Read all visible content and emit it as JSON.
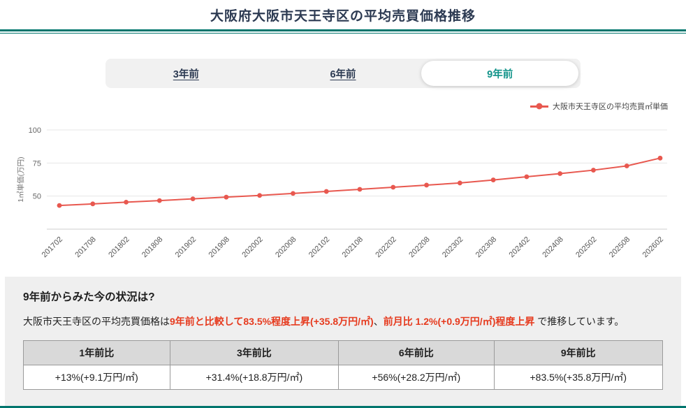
{
  "page": {
    "title": "大阪府大阪市天王寺区の平均売買価格推移"
  },
  "colors": {
    "accent_teal": "#00756d",
    "active_tab_teal": "#12948a",
    "line_red": "#e8584f",
    "text_red": "#e63a1e"
  },
  "tabs": [
    {
      "id": "3-years-ago",
      "label": "3年前",
      "active": false
    },
    {
      "id": "6-years-ago",
      "label": "6年前",
      "active": false
    },
    {
      "id": "9-years-ago",
      "label": "9年前",
      "active": true
    }
  ],
  "legend": {
    "label": "大阪市天王寺区の平均売買㎡単価",
    "color": "#e8584f"
  },
  "chart_data": {
    "type": "line",
    "x": [
      "201702",
      "201708",
      "201802",
      "201808",
      "201902",
      "201908",
      "202002",
      "202008",
      "202102",
      "202108",
      "202202",
      "202208",
      "202302",
      "202308",
      "202402",
      "202408",
      "202502",
      "202508",
      "202602"
    ],
    "series": [
      {
        "name": "大阪市天王寺区の平均売買㎡単価",
        "color": "#e8584f",
        "values": [
          42.9,
          44.1,
          45.4,
          46.6,
          47.9,
          49.2,
          50.5,
          52.0,
          53.5,
          55.1,
          56.7,
          58.3,
          59.9,
          62.2,
          64.6,
          67.0,
          69.6,
          72.8,
          78.7
        ]
      }
    ],
    "title": "",
    "xlabel": "",
    "ylabel": "1㎡単価(万円)",
    "ylim": [
      25,
      100
    ],
    "yticks": [
      50,
      75,
      100
    ],
    "grid": true,
    "legend_position": "top-right"
  },
  "summary": {
    "heading": "9年前からみた今の状況は?",
    "text_parts": [
      {
        "text": "大阪市天王寺区の平均売買価格は",
        "emphasis": false
      },
      {
        "text": "9年前と比較して83.5%程度上昇(+35.8万円/㎡)",
        "emphasis": true
      },
      {
        "text": "、",
        "emphasis": false
      },
      {
        "text": "前月比 1.2%(+0.9万円/㎡)程度上昇",
        "emphasis": true
      },
      {
        "text": " で推移しています。",
        "emphasis": false
      }
    ],
    "table": {
      "headers": [
        "1年前比",
        "3年前比",
        "6年前比",
        "9年前比"
      ],
      "values": [
        "+13%(+9.1万円/㎡)",
        "+31.4%(+18.8万円/㎡)",
        "+56%(+28.2万円/㎡)",
        "+83.5%(+35.8万円/㎡)"
      ]
    }
  }
}
